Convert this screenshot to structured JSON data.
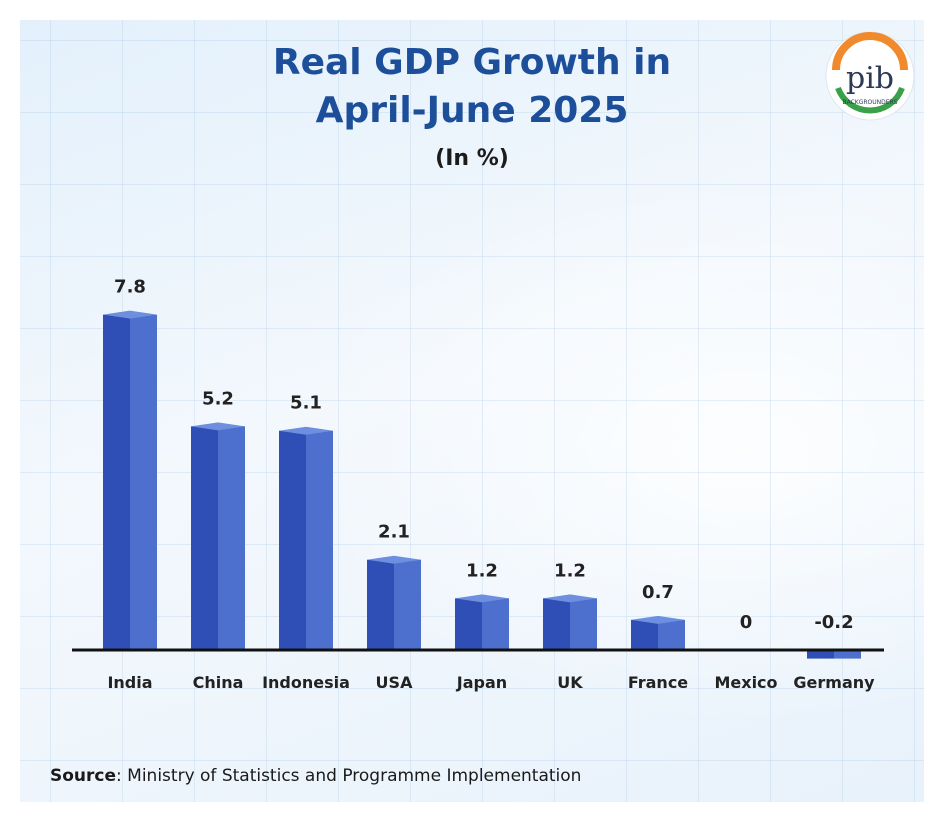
{
  "title_line1": "Real GDP Growth in",
  "title_line2": "April-June 2025",
  "subtitle": "(In %)",
  "logo": {
    "text": "pib",
    "subtext": "BACKGROUNDERS"
  },
  "source": {
    "label": "Source",
    "text": ": Ministry of Statistics and Programme Implementation"
  },
  "colors": {
    "title": "#1d4e9a",
    "bar_front": "#2f4fb6",
    "bar_side": "#4d6fce",
    "bar_top": "#6e8fe0",
    "axis": "#111111"
  },
  "chart_data": {
    "type": "bar",
    "title": "Real GDP Growth in April-June 2025",
    "ylabel": "(In %)",
    "categories": [
      "India",
      "China",
      "Indonesia",
      "USA",
      "Japan",
      "UK",
      "France",
      "Mexico",
      "Germany"
    ],
    "values": [
      7.8,
      5.2,
      5.1,
      2.1,
      1.2,
      1.2,
      0.7,
      0,
      -0.2
    ],
    "labels": [
      "7.8",
      "5.2",
      "5.1",
      "2.1",
      "1.2",
      "1.2",
      "0.7",
      "0",
      "-0.2"
    ],
    "ylim": [
      -0.2,
      7.8
    ],
    "grid": true,
    "legend": "none"
  }
}
